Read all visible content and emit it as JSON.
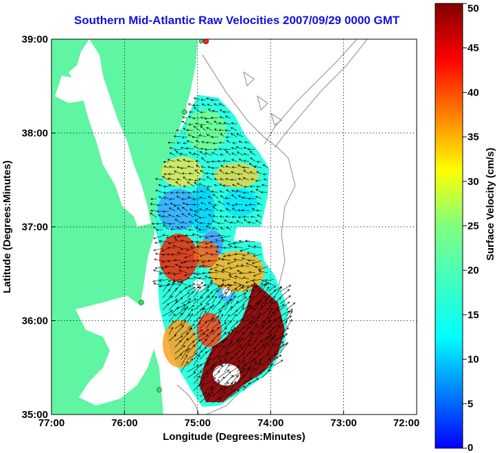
{
  "title": "Southern Mid-Atlantic Raw Velocities 2007/09/29 0000 GMT",
  "map": {
    "xlabel": "Longitude (Degrees:Minutes)",
    "ylabel": "Latitude (Degrees:Minutes)",
    "lon_ticks": [
      "77:00",
      "76:00",
      "75:00",
      "74:00",
      "73:00",
      "72:00"
    ],
    "lat_ticks": [
      "39:00",
      "38:00",
      "37:00",
      "36:00",
      "35:00"
    ],
    "lon_range": [
      -77,
      -72
    ],
    "lat_range": [
      35,
      39
    ],
    "land_color": "#5ff5a3",
    "grid": "dotted"
  },
  "colorbar": {
    "label": "Surface Velocity (cm/s)",
    "ticks": [
      "50",
      "45",
      "40",
      "35",
      "30",
      "25",
      "20",
      "15",
      "10",
      "5",
      "0"
    ],
    "range": [
      0,
      50
    ],
    "colormap": "jet"
  }
}
